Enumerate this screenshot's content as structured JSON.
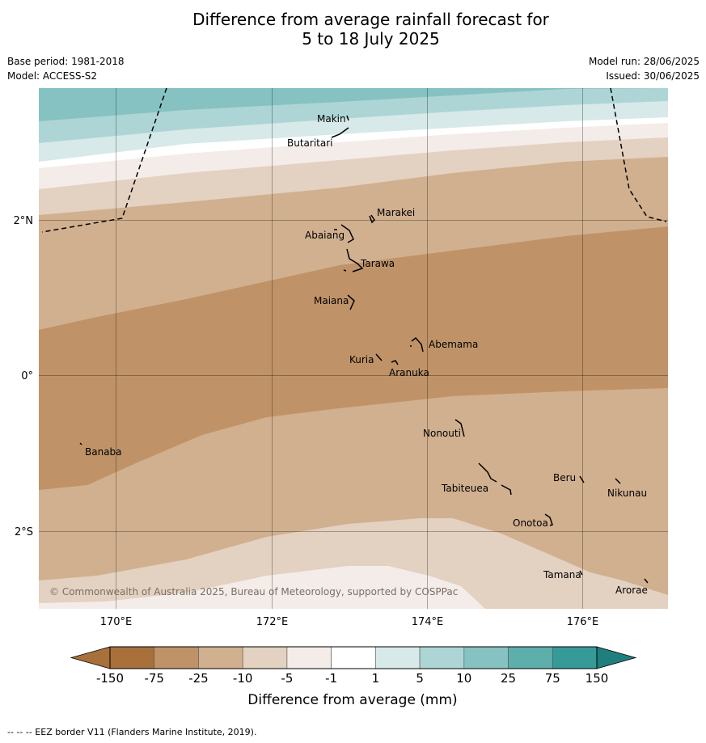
{
  "title": {
    "line1": "Difference from average rainfall forecast for",
    "line2": "5 to 18 July 2025"
  },
  "meta": {
    "base_period": "Base period: 1981-2018",
    "model": "Model: ACCESS-S2",
    "model_run": "Model run: 28/06/2025",
    "issued": "Issued: 30/06/2025"
  },
  "map": {
    "lat_labels": [
      "2°N",
      "0°",
      "2°S"
    ],
    "lon_labels": [
      "170°E",
      "172°E",
      "174°E",
      "176°E"
    ],
    "places": [
      "Makin",
      "Butaritari",
      "Marakei",
      "Abaiang",
      "Tarawa",
      "Maiana",
      "Abemama",
      "Kuria",
      "Aranuka",
      "Nonouti",
      "Banaba",
      "Beru",
      "Nikunau",
      "Tabiteuea",
      "Onotoa",
      "Tamana",
      "Arorae"
    ],
    "copyright": "© Commonwealth of Australia 2025, Bureau of Meteorology, supported by COSPPac"
  },
  "legend": {
    "labels": [
      "-150",
      "-75",
      "-25",
      "-10",
      "-5",
      "-1",
      "1",
      "5",
      "10",
      "25",
      "75",
      "150"
    ],
    "colors": [
      "#a8703b",
      "#bf9367",
      "#d1b08f",
      "#e3d1c1",
      "#f4ece8",
      "#ffffff",
      "#d7e9e9",
      "#aed5d5",
      "#86c2c1",
      "#5eaeac",
      "#369a98",
      "#1f7f7e"
    ],
    "title": "Difference from average (mm)"
  },
  "footnote": "--  --  -- EEZ border V11 (Flanders Marine Institute, 2019)."
}
